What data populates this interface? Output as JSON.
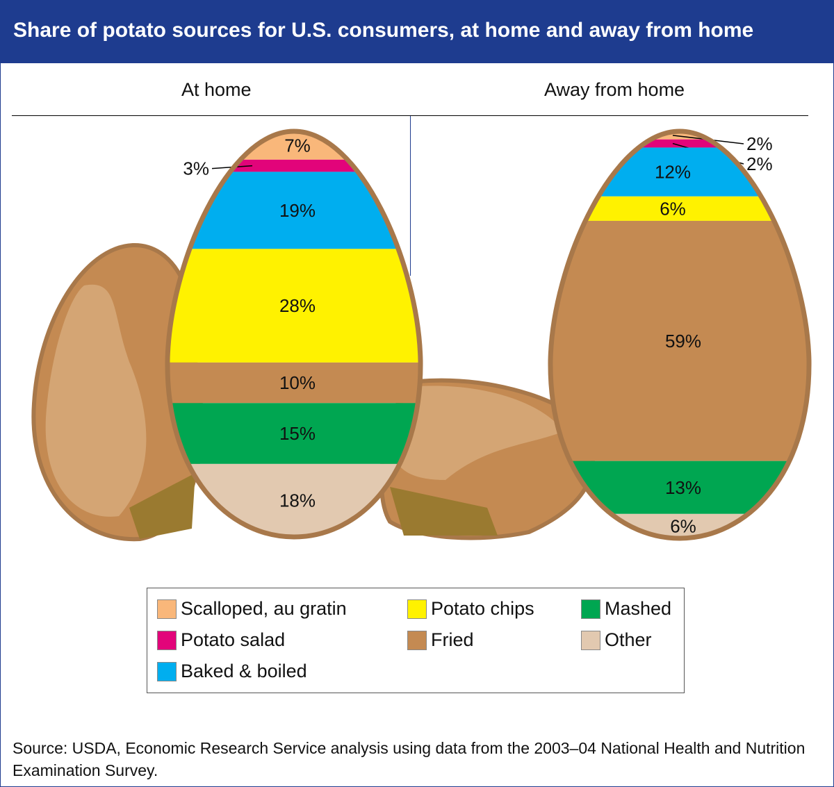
{
  "title": "Share of potato sources for U.S. consumers, at home and away from home",
  "chart_data": {
    "type": "stacked-shape",
    "title": "Share of potato sources for U.S. consumers, at home and away from home",
    "categories": [
      "Scalloped, au gratin",
      "Potato salad",
      "Baked & boiled",
      "Potato chips",
      "Fried",
      "Mashed",
      "Other"
    ],
    "colors": [
      "#f9b77a",
      "#e2047a",
      "#00aeef",
      "#fff200",
      "#c48a52",
      "#00a651",
      "#e2c9b0"
    ],
    "series": [
      {
        "name": "At home",
        "values": [
          7,
          3,
          19,
          28,
          10,
          15,
          18
        ]
      },
      {
        "name": "Away from home",
        "values": [
          2,
          2,
          12,
          6,
          59,
          13,
          6
        ]
      }
    ],
    "unit": "%"
  },
  "legend": [
    "Scalloped, au gratin",
    "Potato salad",
    "Baked & boiled",
    "Potato chips",
    "Fried",
    "Mashed",
    "Other"
  ],
  "source": "Source: USDA, Economic Research Service analysis using data from the 2003–04 National Health and Nutrition Examination Survey."
}
